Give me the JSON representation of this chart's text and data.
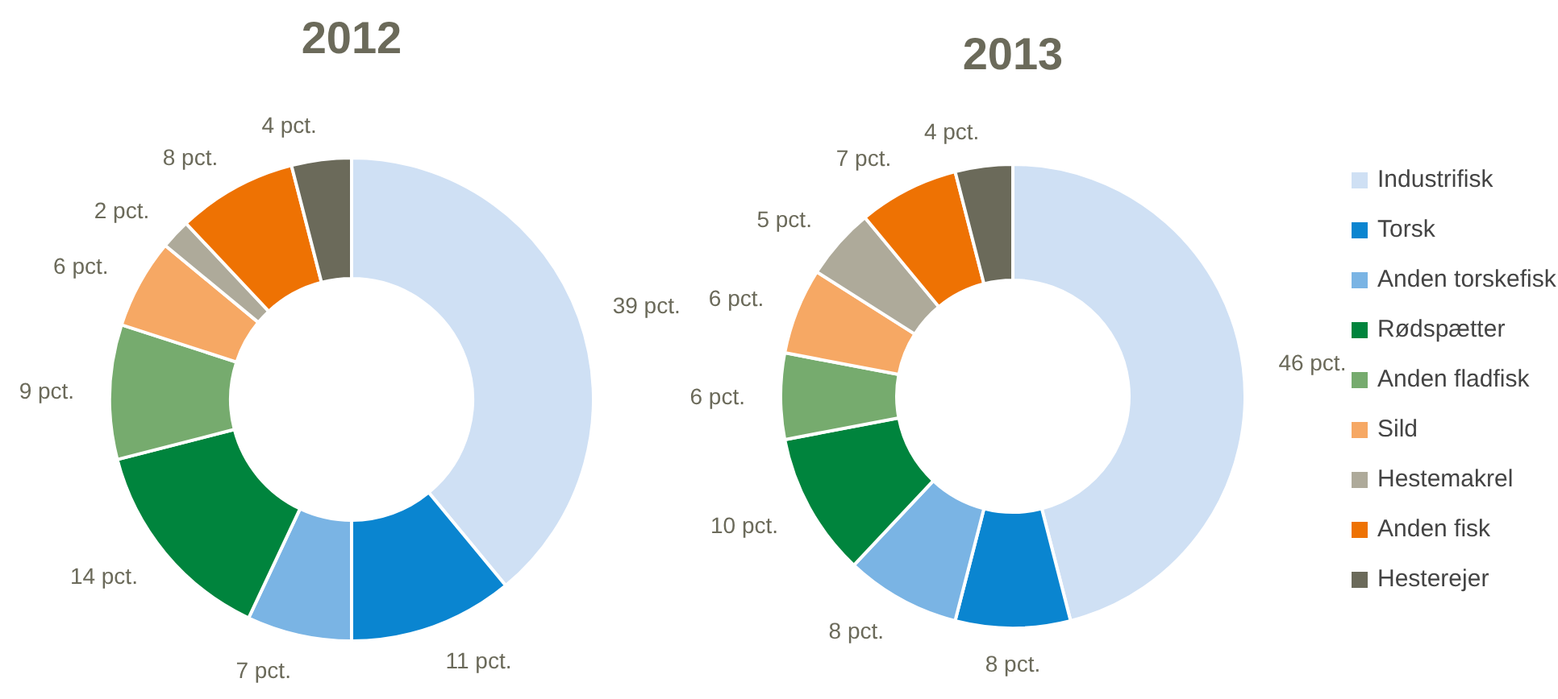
{
  "chart_data": [
    {
      "type": "donut",
      "title": "2012",
      "categories": [
        null,
        null,
        null,
        null,
        null,
        null,
        null,
        null,
        null
      ],
      "values": [
        39,
        11,
        7,
        14,
        9,
        6,
        2,
        8,
        4
      ],
      "value_labels": [
        "39 pct.",
        "11 pct.",
        "7 pct.",
        "14 pct.",
        "9 pct.",
        "6 pct.",
        "2 pct.",
        "8 pct.",
        "4 pct."
      ],
      "colors": [
        "#cfe0f4",
        "#0a85d0",
        "#7ab4e4",
        "#00843d",
        "#76ab6e",
        "#f6a864",
        "#aeaa9a",
        "#ee7203",
        "#6b6a5a"
      ],
      "legend": false
    },
    {
      "type": "donut",
      "title": "2013",
      "categories": [
        "Industrifisk",
        "Torsk",
        "Anden torskefisk",
        "Rødspætter",
        "Anden fladfisk",
        "Sild",
        "Hestemakrel",
        "Anden fisk",
        "Hesterejer"
      ],
      "values": [
        46,
        8,
        8,
        10,
        6,
        6,
        5,
        7,
        4
      ],
      "value_labels": [
        "46 pct.",
        "8 pct.",
        "8 pct.",
        "10 pct.",
        "6 pct.",
        "6 pct.",
        "5 pct.",
        "7 pct.",
        "4 pct."
      ],
      "colors": [
        "#cfe0f4",
        "#0a85d0",
        "#7ab4e4",
        "#00843d",
        "#76ab6e",
        "#f6a864",
        "#aeaa9a",
        "#ee7203",
        "#6b6a5a"
      ],
      "legend": "right"
    }
  ]
}
